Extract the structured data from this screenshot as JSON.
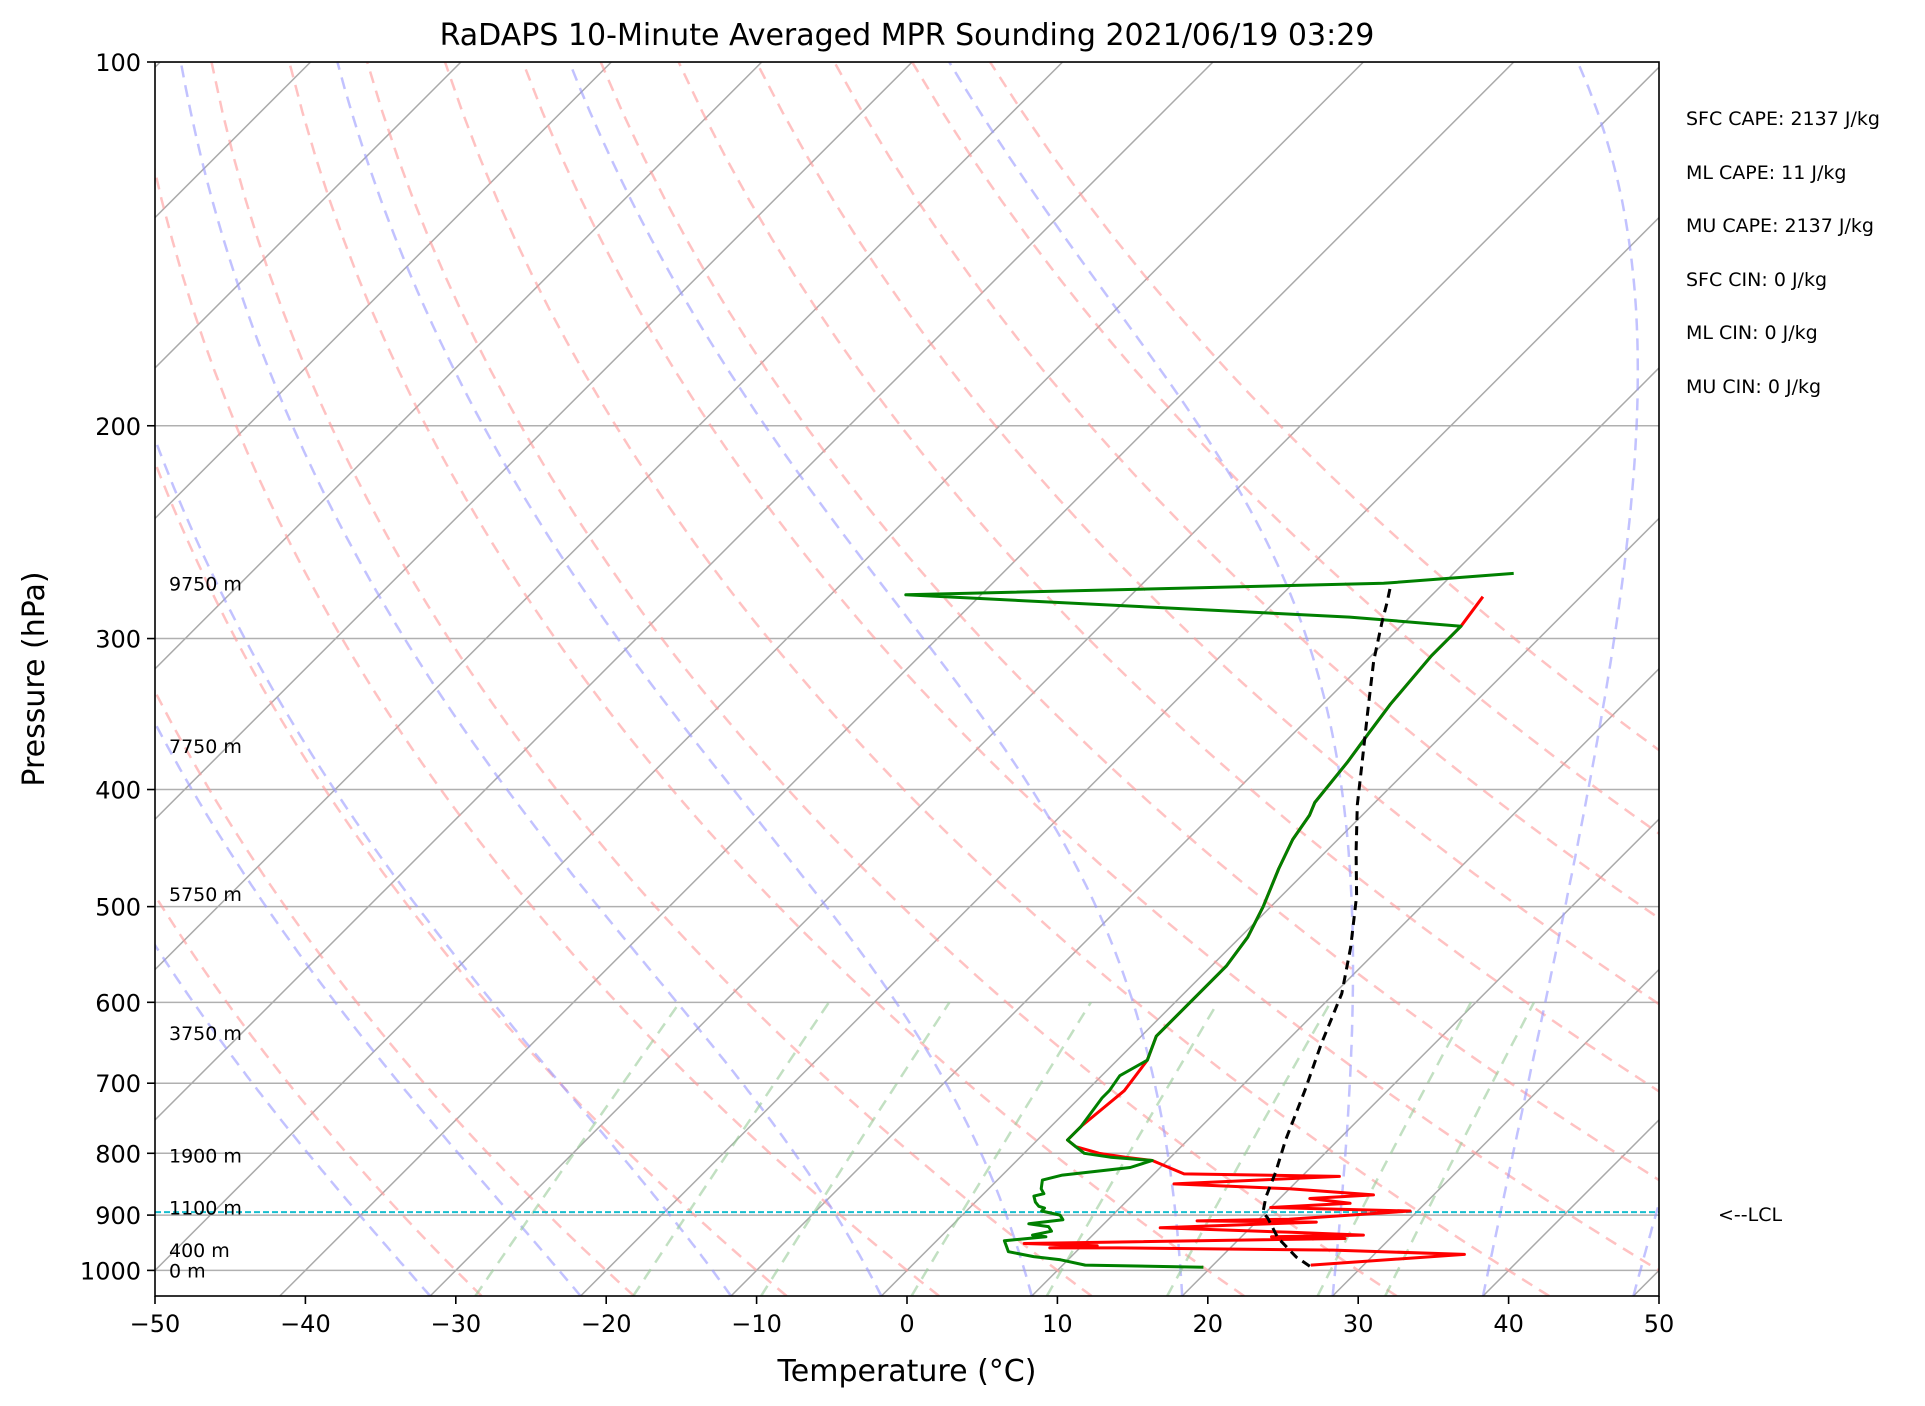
{
  "chart_data": {
    "type": "line",
    "title": "RaDAPS 10-Minute Averaged MPR Sounding 2021/06/19 03:29",
    "xlabel": "Temperature (°C)",
    "ylabel": "Pressure (hPa)",
    "xlim": [
      -50,
      50
    ],
    "ylim": [
      1050,
      100
    ],
    "y_scale": "log",
    "skewed_isotherms": true,
    "xticks": [
      -50,
      -40,
      -30,
      -20,
      -10,
      0,
      10,
      20,
      30,
      40,
      50
    ],
    "xtick_labels": [
      "−50",
      "−40",
      "−30",
      "−20",
      "−10",
      "0",
      "10",
      "20",
      "30",
      "40",
      "50"
    ],
    "yticks": [
      1000,
      900,
      800,
      700,
      600,
      500,
      400,
      300,
      200,
      100
    ],
    "ytick_labels": [
      "1000",
      "900",
      "800",
      "700",
      "600",
      "500",
      "400",
      "300",
      "200",
      "100"
    ],
    "grid": true,
    "height_labels": [
      {
        "p": 1000,
        "text": "0 m"
      },
      {
        "p": 962,
        "text": "400 m"
      },
      {
        "p": 887,
        "text": "1100 m"
      },
      {
        "p": 803,
        "text": "1900 m"
      },
      {
        "p": 636,
        "text": "3750 m"
      },
      {
        "p": 488,
        "text": "5750 m"
      },
      {
        "p": 368,
        "text": "7750 m"
      },
      {
        "p": 270,
        "text": "9750 m"
      }
    ],
    "lcl": {
      "p": 895,
      "label": "<--LCL",
      "color": "#17becf"
    },
    "annotations": [
      "SFC CAPE: 2137 J/kg",
      "ML CAPE: 11 J/kg",
      "MU CAPE: 2137 J/kg",
      "SFC CIN: 0 J/kg",
      "ML CIN: 0 J/kg",
      "MU CIN: 0 J/kg"
    ],
    "background_lines": {
      "isotherm_color": "#aaaaaa",
      "dry_adiabat_color": "#ff9999",
      "moist_adiabat_color": "#9999ff",
      "mixing_ratio_color": "#99cc99",
      "dry_adiabat_theta_c": [
        -30,
        -20,
        -10,
        0,
        10,
        20,
        30,
        40,
        50,
        60,
        70,
        80,
        90,
        100,
        110
      ],
      "moist_adiabat_bottom_c": [
        -30,
        -20,
        -10,
        0,
        10,
        20,
        30,
        40,
        50
      ],
      "mixing_ratio_bottom_c": [
        -27,
        -16.5,
        -8,
        2,
        11,
        19,
        29,
        33.5
      ]
    },
    "series": [
      {
        "color": "#ff0000",
        "width": 3,
        "points": [
          [
            26.5,
            990
          ],
          [
            36,
            970
          ],
          [
            27,
            962
          ],
          [
            12.5,
            958
          ],
          [
            8,
            958
          ],
          [
            11,
            954
          ],
          [
            6,
            950
          ],
          [
            27,
            941
          ],
          [
            22,
            938
          ],
          [
            28,
            935
          ],
          [
            23,
            930
          ],
          [
            14,
            922
          ],
          [
            24,
            912
          ],
          [
            16,
            910
          ],
          [
            22,
            907
          ],
          [
            29.5,
            893
          ],
          [
            20,
            887
          ],
          [
            25,
            880
          ],
          [
            22,
            872
          ],
          [
            26,
            866
          ],
          [
            20,
            856
          ],
          [
            12,
            848
          ],
          [
            22.5,
            836
          ],
          [
            12,
            832
          ],
          [
            9,
            811
          ],
          [
            7,
            806
          ],
          [
            5,
            800
          ],
          [
            3,
            790
          ],
          [
            2,
            780
          ],
          [
            2,
            760
          ],
          [
            2.5,
            710
          ],
          [
            2,
            670
          ],
          [
            1,
            640
          ],
          [
            1,
            560
          ],
          [
            0.5,
            530
          ],
          [
            -0.5,
            500
          ],
          [
            -2,
            465
          ],
          [
            -3,
            440
          ],
          [
            -3.5,
            420
          ],
          [
            -4,
            410
          ],
          [
            -4.5,
            380
          ],
          [
            -5,
            360
          ],
          [
            -5.5,
            340
          ],
          [
            -6,
            310
          ],
          [
            -6,
            297
          ],
          [
            -6,
            293
          ],
          [
            -6.5,
            277
          ]
        ]
      },
      {
        "color": "#008000",
        "width": 3,
        "points": [
          [
            19.5,
            994
          ],
          [
            11.5,
            990
          ],
          [
            9.5,
            980
          ],
          [
            7.5,
            974
          ],
          [
            5.5,
            965
          ],
          [
            5,
            955
          ],
          [
            4.5,
            945
          ],
          [
            7,
            938
          ],
          [
            6,
            935
          ],
          [
            7,
            928
          ],
          [
            6.5,
            920
          ],
          [
            5,
            915
          ],
          [
            7,
            908
          ],
          [
            6.5,
            900
          ],
          [
            5,
            893
          ],
          [
            5,
            888
          ],
          [
            4.5,
            885
          ],
          [
            4,
            878
          ],
          [
            3.5,
            868
          ],
          [
            4,
            864
          ],
          [
            3.5,
            856
          ],
          [
            3,
            842
          ],
          [
            4,
            834
          ],
          [
            8,
            822
          ],
          [
            9,
            811
          ],
          [
            6,
            806
          ],
          [
            4,
            800
          ],
          [
            3,
            790
          ],
          [
            2,
            780
          ],
          [
            2,
            760
          ],
          [
            1.5,
            720
          ],
          [
            1.5,
            710
          ],
          [
            1.2,
            690
          ],
          [
            2,
            670
          ],
          [
            1,
            640
          ],
          [
            1,
            560
          ],
          [
            0.5,
            530
          ],
          [
            -0.5,
            500
          ],
          [
            -2,
            465
          ],
          [
            -3,
            440
          ],
          [
            -3.5,
            420
          ],
          [
            -4,
            410
          ],
          [
            -4.5,
            380
          ],
          [
            -5,
            360
          ],
          [
            -5.5,
            340
          ],
          [
            -6,
            310
          ],
          [
            -6,
            293
          ],
          [
            -14,
            288
          ],
          [
            -45,
            276
          ],
          [
            -14,
            270
          ],
          [
            -6,
            265
          ]
        ]
      },
      {
        "color": "#000000",
        "width": 3,
        "dash": true,
        "points": [
          [
            26.5,
            992
          ],
          [
            25,
            975
          ],
          [
            22.5,
            940
          ],
          [
            20.5,
            905
          ],
          [
            19.8,
            895
          ],
          [
            19,
            870
          ],
          [
            18,
            830
          ],
          [
            16.5,
            780
          ],
          [
            14.5,
            710
          ],
          [
            12.5,
            650
          ],
          [
            10.5,
            590
          ],
          [
            8,
            540
          ],
          [
            5,
            490
          ],
          [
            2,
            450
          ],
          [
            -1,
            412
          ],
          [
            -3.5,
            380
          ],
          [
            -6.5,
            345
          ],
          [
            -9.5,
            313
          ],
          [
            -11.5,
            291
          ],
          [
            -12.5,
            280
          ],
          [
            -13.5,
            270
          ]
        ]
      }
    ]
  }
}
